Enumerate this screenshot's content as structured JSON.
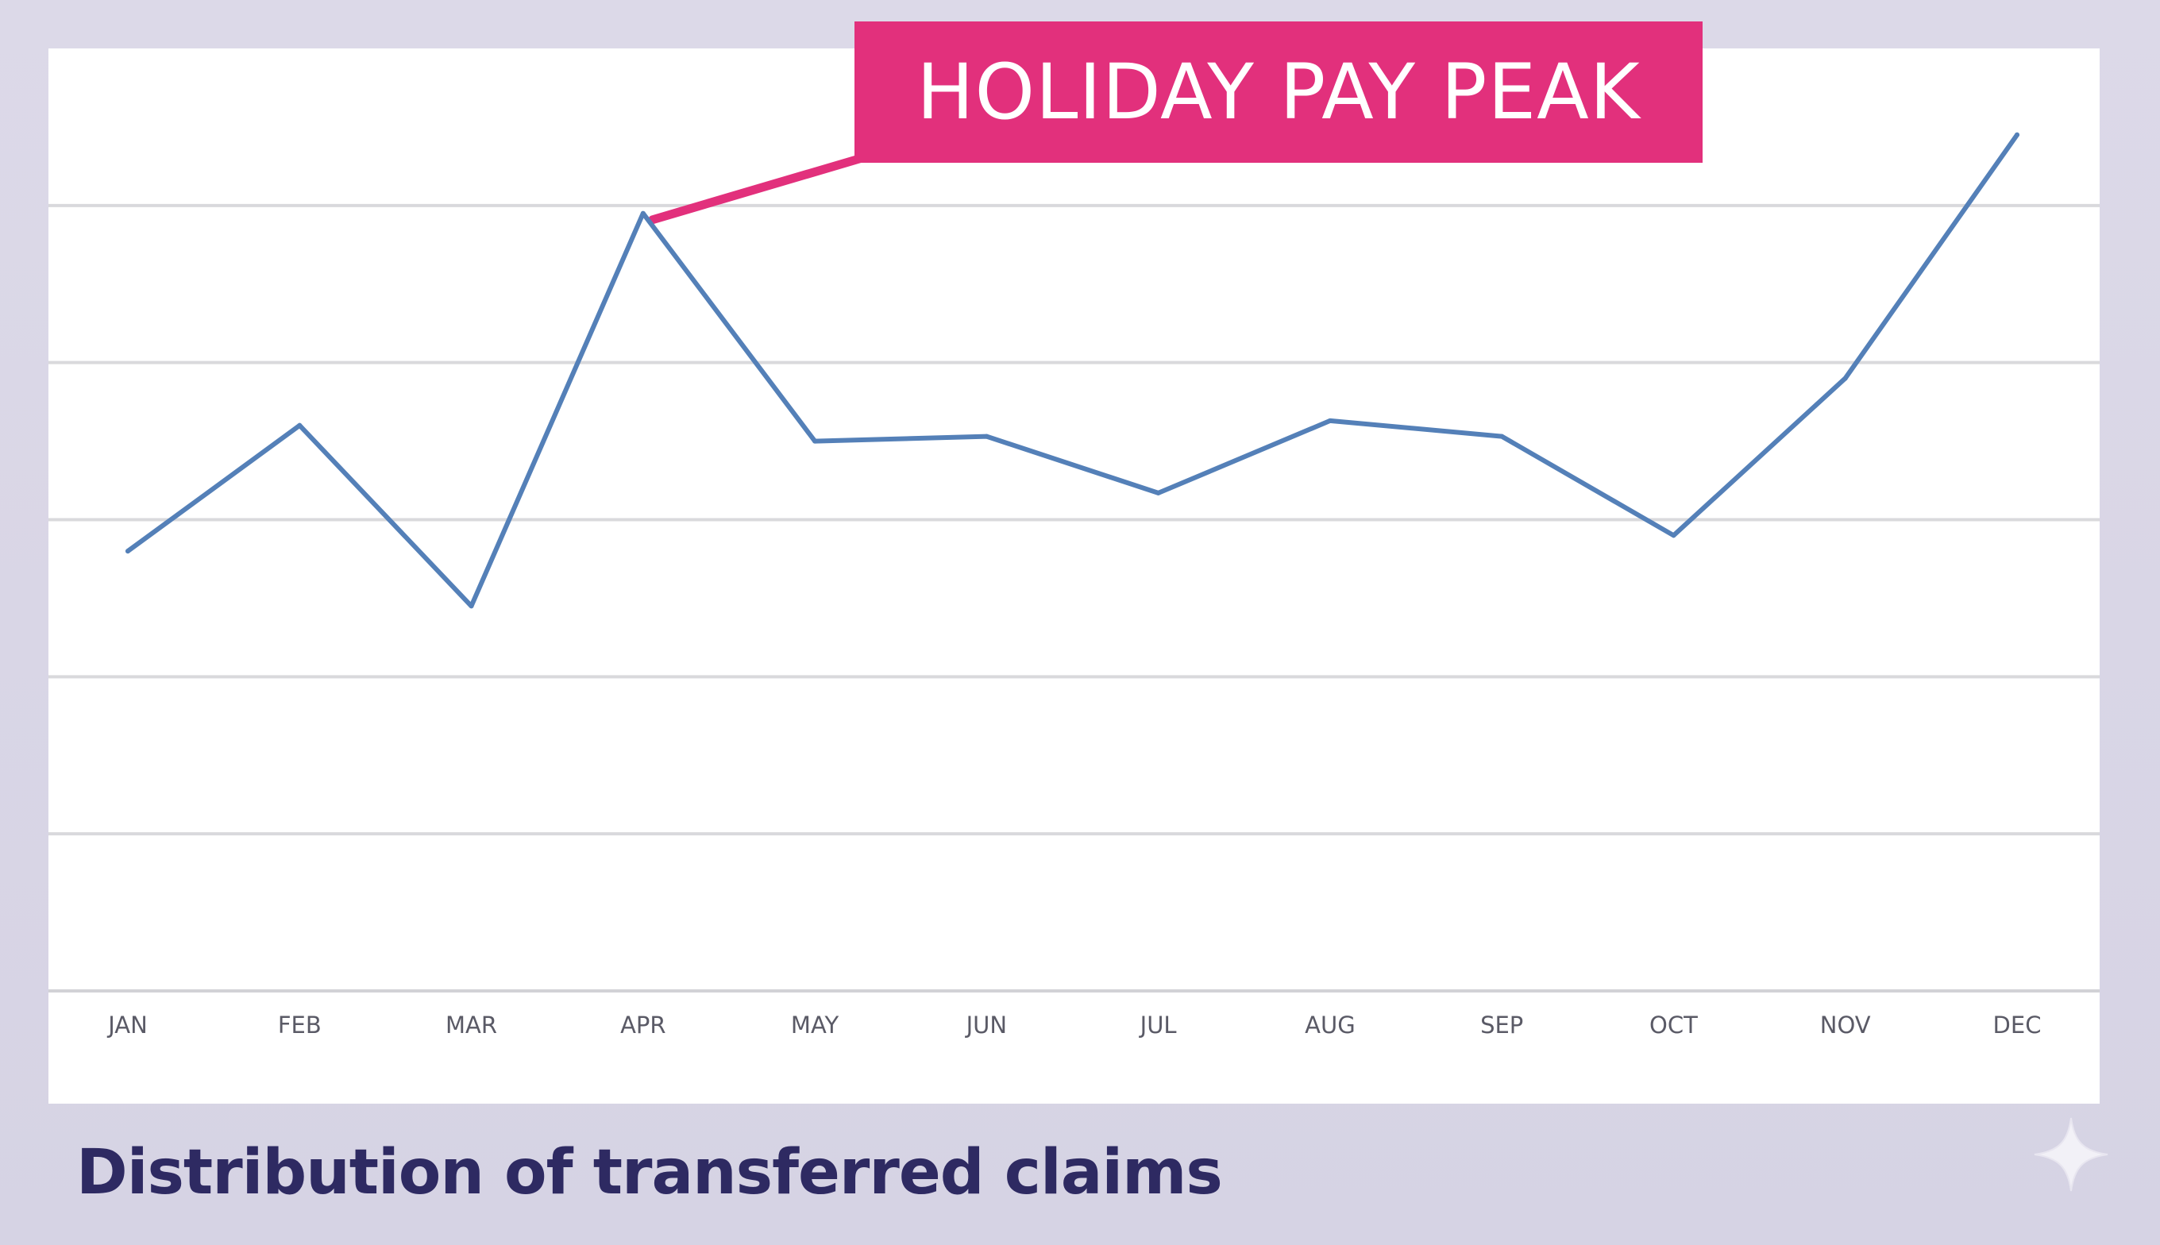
{
  "chart_data": {
    "type": "line",
    "title": "Distribution of transferred claims",
    "xlabel": "",
    "ylabel": "",
    "categories": [
      "JAN",
      "FEB",
      "MAR",
      "APR",
      "MAY",
      "JUN",
      "JUL",
      "AUG",
      "SEP",
      "OCT",
      "NOV",
      "DEC"
    ],
    "series": [
      {
        "name": "",
        "values": [
          2.8,
          3.6,
          2.45,
          4.95,
          3.5,
          3.53,
          3.17,
          3.63,
          3.53,
          2.9,
          3.9,
          5.45
        ],
        "color": "#5480b8"
      }
    ],
    "ylim": [
      0,
      6
    ],
    "gridlines": [
      1,
      2,
      3,
      4,
      5
    ],
    "grid": true,
    "legend": "none",
    "annotations": [
      {
        "label": "HOLIDAY PAY PEAK",
        "category": "APR",
        "color": "#e2307c"
      }
    ]
  },
  "decor": {
    "sparkle_icon": "sparkle-icon"
  }
}
